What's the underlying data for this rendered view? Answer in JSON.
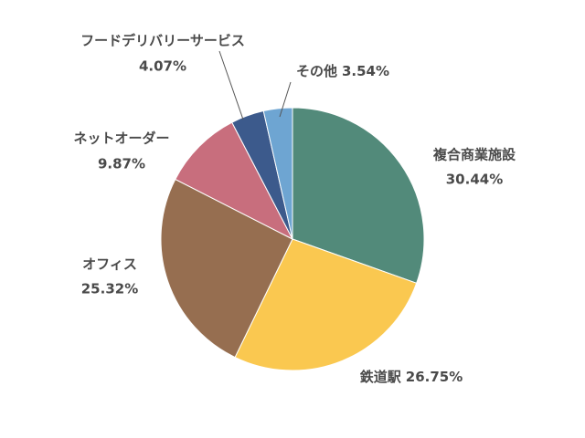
{
  "chart_data": {
    "type": "pie",
    "categories": [
      "複合商業施設",
      "鉄道駅",
      "オフィス",
      "ネットオーダー",
      "フードデリバリーサービス",
      "その他"
    ],
    "values": [
      30.44,
      26.75,
      25.32,
      9.87,
      4.07,
      3.54
    ],
    "value_labels": [
      "30.44%",
      "26.75%",
      "25.32%",
      "9.87%",
      "4.07%",
      "3.54%"
    ],
    "colors": [
      "#528a7a",
      "#fac850",
      "#966e50",
      "#c86e7d",
      "#3c5a8c",
      "#6ea5d2"
    ]
  }
}
